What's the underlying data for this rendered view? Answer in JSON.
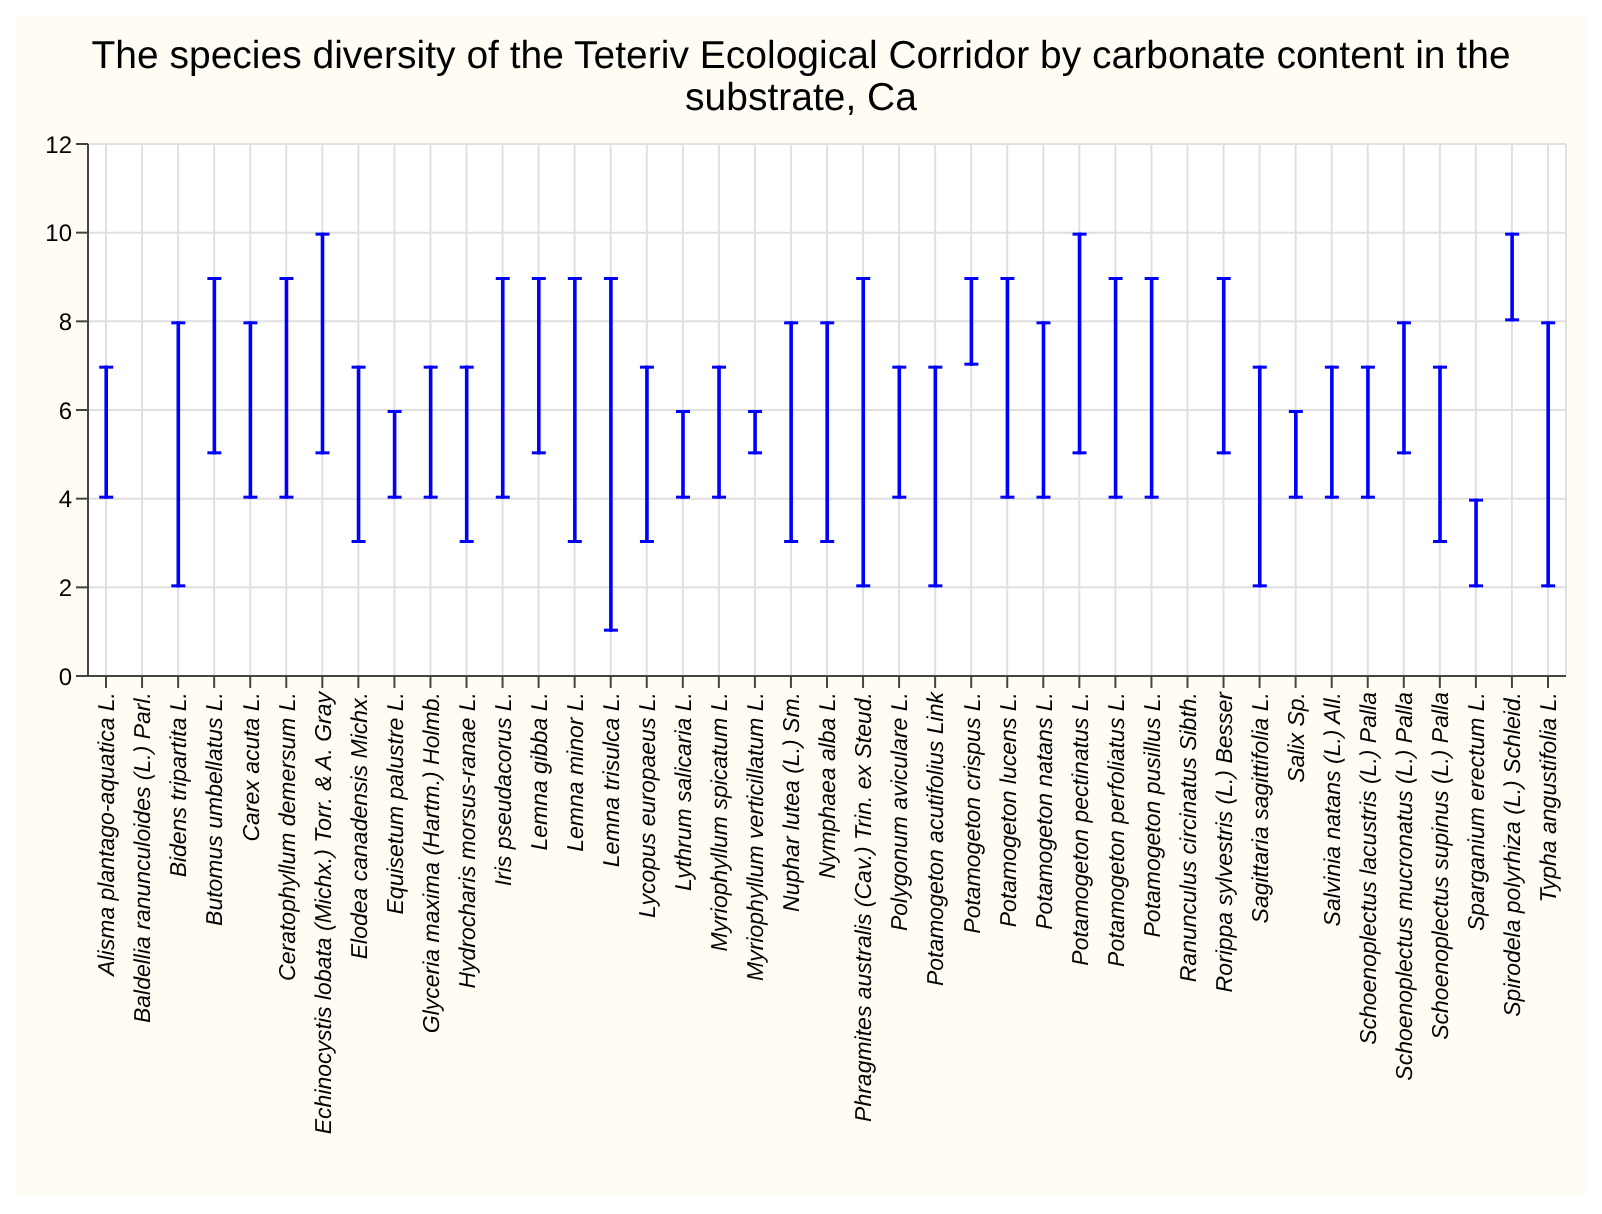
{
  "chart_data": {
    "type": "bar",
    "title": "The species diversity of the Teteriv Ecological Corridor by carbonate content in the substrate, Ca",
    "categories": [
      "Alisma plantago-aquatica L.",
      "Baldellia ranunculoides (L.) Parl.",
      "Bidens tripartita L.",
      "Butomus umbellatus L.",
      "Carex acuta L.",
      "Ceratophyllum demersum L.",
      "Echinocystis lobata (Michx.) Torr. & A. Gray",
      "Elodea canadensis Michx.",
      "Equisetum palustre L.",
      "Glyceria maxima (Hartm.) Holmb.",
      "Hydrocharis morsus-ranae L.",
      "Iris pseudacorus L.",
      "Lemna gibba L.",
      "Lemna minor L.",
      "Lemna trisulca L.",
      "Lycopus europaeus L.",
      "Lythrum salicaria L.",
      "Myriophyllum spicatum L.",
      "Myriophyllum verticillatum L.",
      "Nuphar lutea (L.) Sm.",
      "Nymphaea alba L.",
      "Phragmites australis (Cav.) Trin. ex Steud.",
      "Polygonum aviculare L.",
      "Potamogeton acutifolius Link",
      "Potamogeton crispus L.",
      "Potamogeton lucens L.",
      "Potamogeton natans L.",
      "Potamogeton pectinatus L.",
      "Potamogeton perfoliatus L.",
      "Potamogeton pusillus L.",
      "Ranunculus circinatus Sibth.",
      "Rorippa sylvestris (L.) Besser",
      "Sagittaria sagittifolia L.",
      "Salix Sp.",
      "Salvinia natans (L.) All.",
      "Schoenoplectus lacustris (L.) Palla",
      "Schoenoplectus mucronatus (L.) Palla",
      "Schoenoplectus supinus (L.) Palla",
      "Sparganium erectum L.",
      "Spirodela polyrhiza (L.) Schleid.",
      "Typha angustifolia L."
    ],
    "base": [
      4,
      null,
      2,
      5,
      4,
      4,
      5,
      3,
      4,
      4,
      3,
      4,
      5,
      3,
      1,
      3,
      4,
      4,
      5,
      3,
      3,
      2,
      4,
      2,
      7,
      4,
      4,
      5,
      4,
      4,
      null,
      5,
      2,
      4,
      4,
      4,
      5,
      3,
      2,
      8,
      2
    ],
    "values": [
      3,
      null,
      6,
      4,
      4,
      5,
      5,
      4,
      2,
      3,
      4,
      5,
      4,
      6,
      8,
      4,
      2,
      3,
      1,
      5,
      5,
      7,
      3,
      5,
      2,
      5,
      4,
      5,
      5,
      5,
      null,
      4,
      5,
      2,
      3,
      3,
      3,
      4,
      2,
      2,
      6
    ],
    "color": "#0000ff",
    "ylim": [
      0,
      12
    ],
    "yticks": [
      0,
      2,
      4,
      6,
      8,
      10,
      12
    ],
    "grid": true
  }
}
